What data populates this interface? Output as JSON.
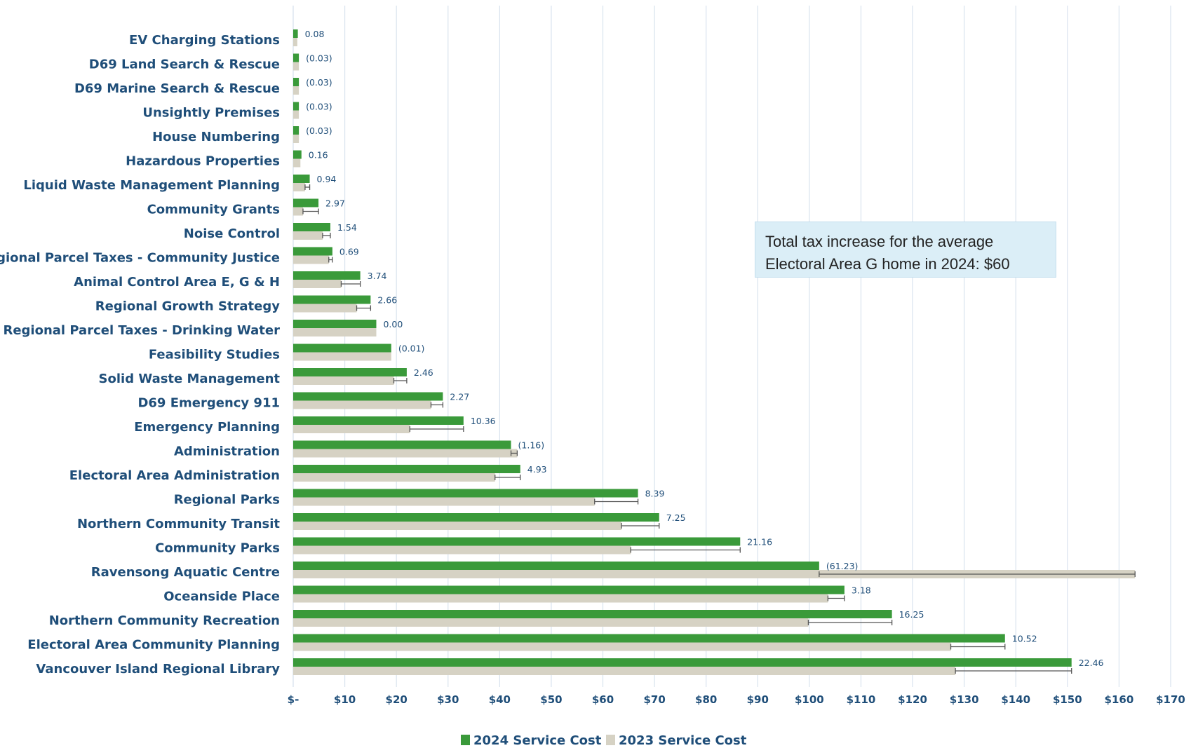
{
  "chart_data": {
    "type": "bar",
    "orientation": "horizontal",
    "categories": [
      "EV Charging Stations",
      "D69 Land Search & Rescue",
      "D69 Marine Search & Rescue",
      "Unsightly Premises",
      "House Numbering",
      "Hazardous Properties",
      "Liquid Waste Management Planning",
      "Community Grants",
      "Noise Control",
      "Regional Parcel Taxes - Community Justice",
      "Animal Control Area E, G & H",
      "Regional Growth Strategy",
      "Regional Parcel Taxes - Drinking Water",
      "Feasibility Studies",
      "Solid Waste Management",
      "D69 Emergency 911",
      "Emergency Planning",
      "Administration",
      "Electoral Area Administration",
      "Regional Parks",
      "Northern Community Transit",
      "Community Parks",
      "Ravensong Aquatic Centre",
      "Oceanside Place",
      "Northern Community Recreation",
      "Electoral Area Community Planning",
      "Vancouver Island Regional Library"
    ],
    "series": [
      {
        "name": "2024 Service Cost",
        "color": "#3a9a3a",
        "values": [
          0.9,
          1.1,
          1.1,
          1.1,
          1.1,
          1.6,
          3.2,
          4.9,
          7.2,
          7.6,
          13.0,
          15.0,
          16.1,
          19.0,
          22.0,
          29.0,
          33.0,
          42.2,
          44.0,
          66.8,
          70.9,
          86.6,
          101.9,
          106.8,
          116.0,
          137.9,
          150.8
        ]
      },
      {
        "name": "2023 Service Cost",
        "color": "#d6d2c4",
        "values": [
          0.8,
          1.1,
          1.1,
          1.1,
          1.1,
          1.4,
          2.3,
          1.9,
          5.7,
          6.9,
          9.3,
          12.3,
          16.1,
          19.0,
          19.5,
          26.7,
          22.6,
          43.4,
          39.1,
          58.4,
          63.6,
          65.4,
          163.1,
          103.6,
          99.8,
          127.4,
          128.3
        ]
      }
    ],
    "change_labels": [
      "0.08",
      "(0.03)",
      "(0.03)",
      "(0.03)",
      "(0.03)",
      "0.16",
      "0.94",
      "2.97",
      "1.54",
      "0.69",
      "3.74",
      "2.66",
      "0.00",
      "(0.01)",
      "2.46",
      "2.27",
      "10.36",
      "(1.16)",
      "4.93",
      "8.39",
      "7.25",
      "21.16",
      "(61.23)",
      "3.18",
      "16.25",
      "10.52",
      "22.46"
    ],
    "x_ticks": [
      "$-",
      "$10",
      "$20",
      "$30",
      "$40",
      "$50",
      "$60",
      "$70",
      "$80",
      "$90",
      "$100",
      "$110",
      "$120",
      "$130",
      "$140",
      "$150",
      "$160",
      "$170"
    ],
    "xlim": [
      0,
      170
    ],
    "grid": "vertical",
    "legend_placement": "bottom-center",
    "title": "",
    "xlabel": "",
    "ylabel": ""
  },
  "annotation": {
    "line1": "Total tax increase for the average",
    "line2": "Electoral Area G home in 2024:  $60"
  }
}
